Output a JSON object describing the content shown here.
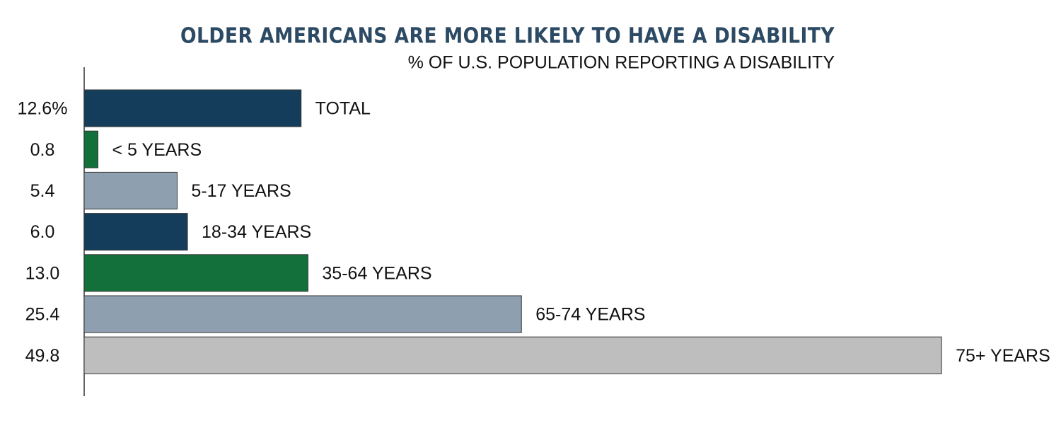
{
  "chart_data": {
    "type": "bar",
    "orientation": "horizontal",
    "title": "OLDER AMERICANS ARE MORE LIKELY TO HAVE A DISABILITY",
    "subtitle": "% OF U.S. POPULATION REPORTING A DISABILITY",
    "categories": [
      "TOTAL",
      "< 5 YEARS",
      "5-17 YEARS",
      "18-34 YEARS",
      "35-64 YEARS",
      "65-74 YEARS",
      "75+ YEARS"
    ],
    "values": [
      12.6,
      0.8,
      5.4,
      6.0,
      13.0,
      25.4,
      49.8
    ],
    "value_labels": [
      "12.6%",
      "0.8",
      "5.4",
      "6.0",
      "13.0",
      "25.4",
      "49.8"
    ],
    "colors": [
      "#143d5c",
      "#13703a",
      "#8ea0b0",
      "#143d5c",
      "#13703a",
      "#8ea0b0",
      "#bebebe"
    ],
    "xlim": [
      0,
      50
    ]
  }
}
